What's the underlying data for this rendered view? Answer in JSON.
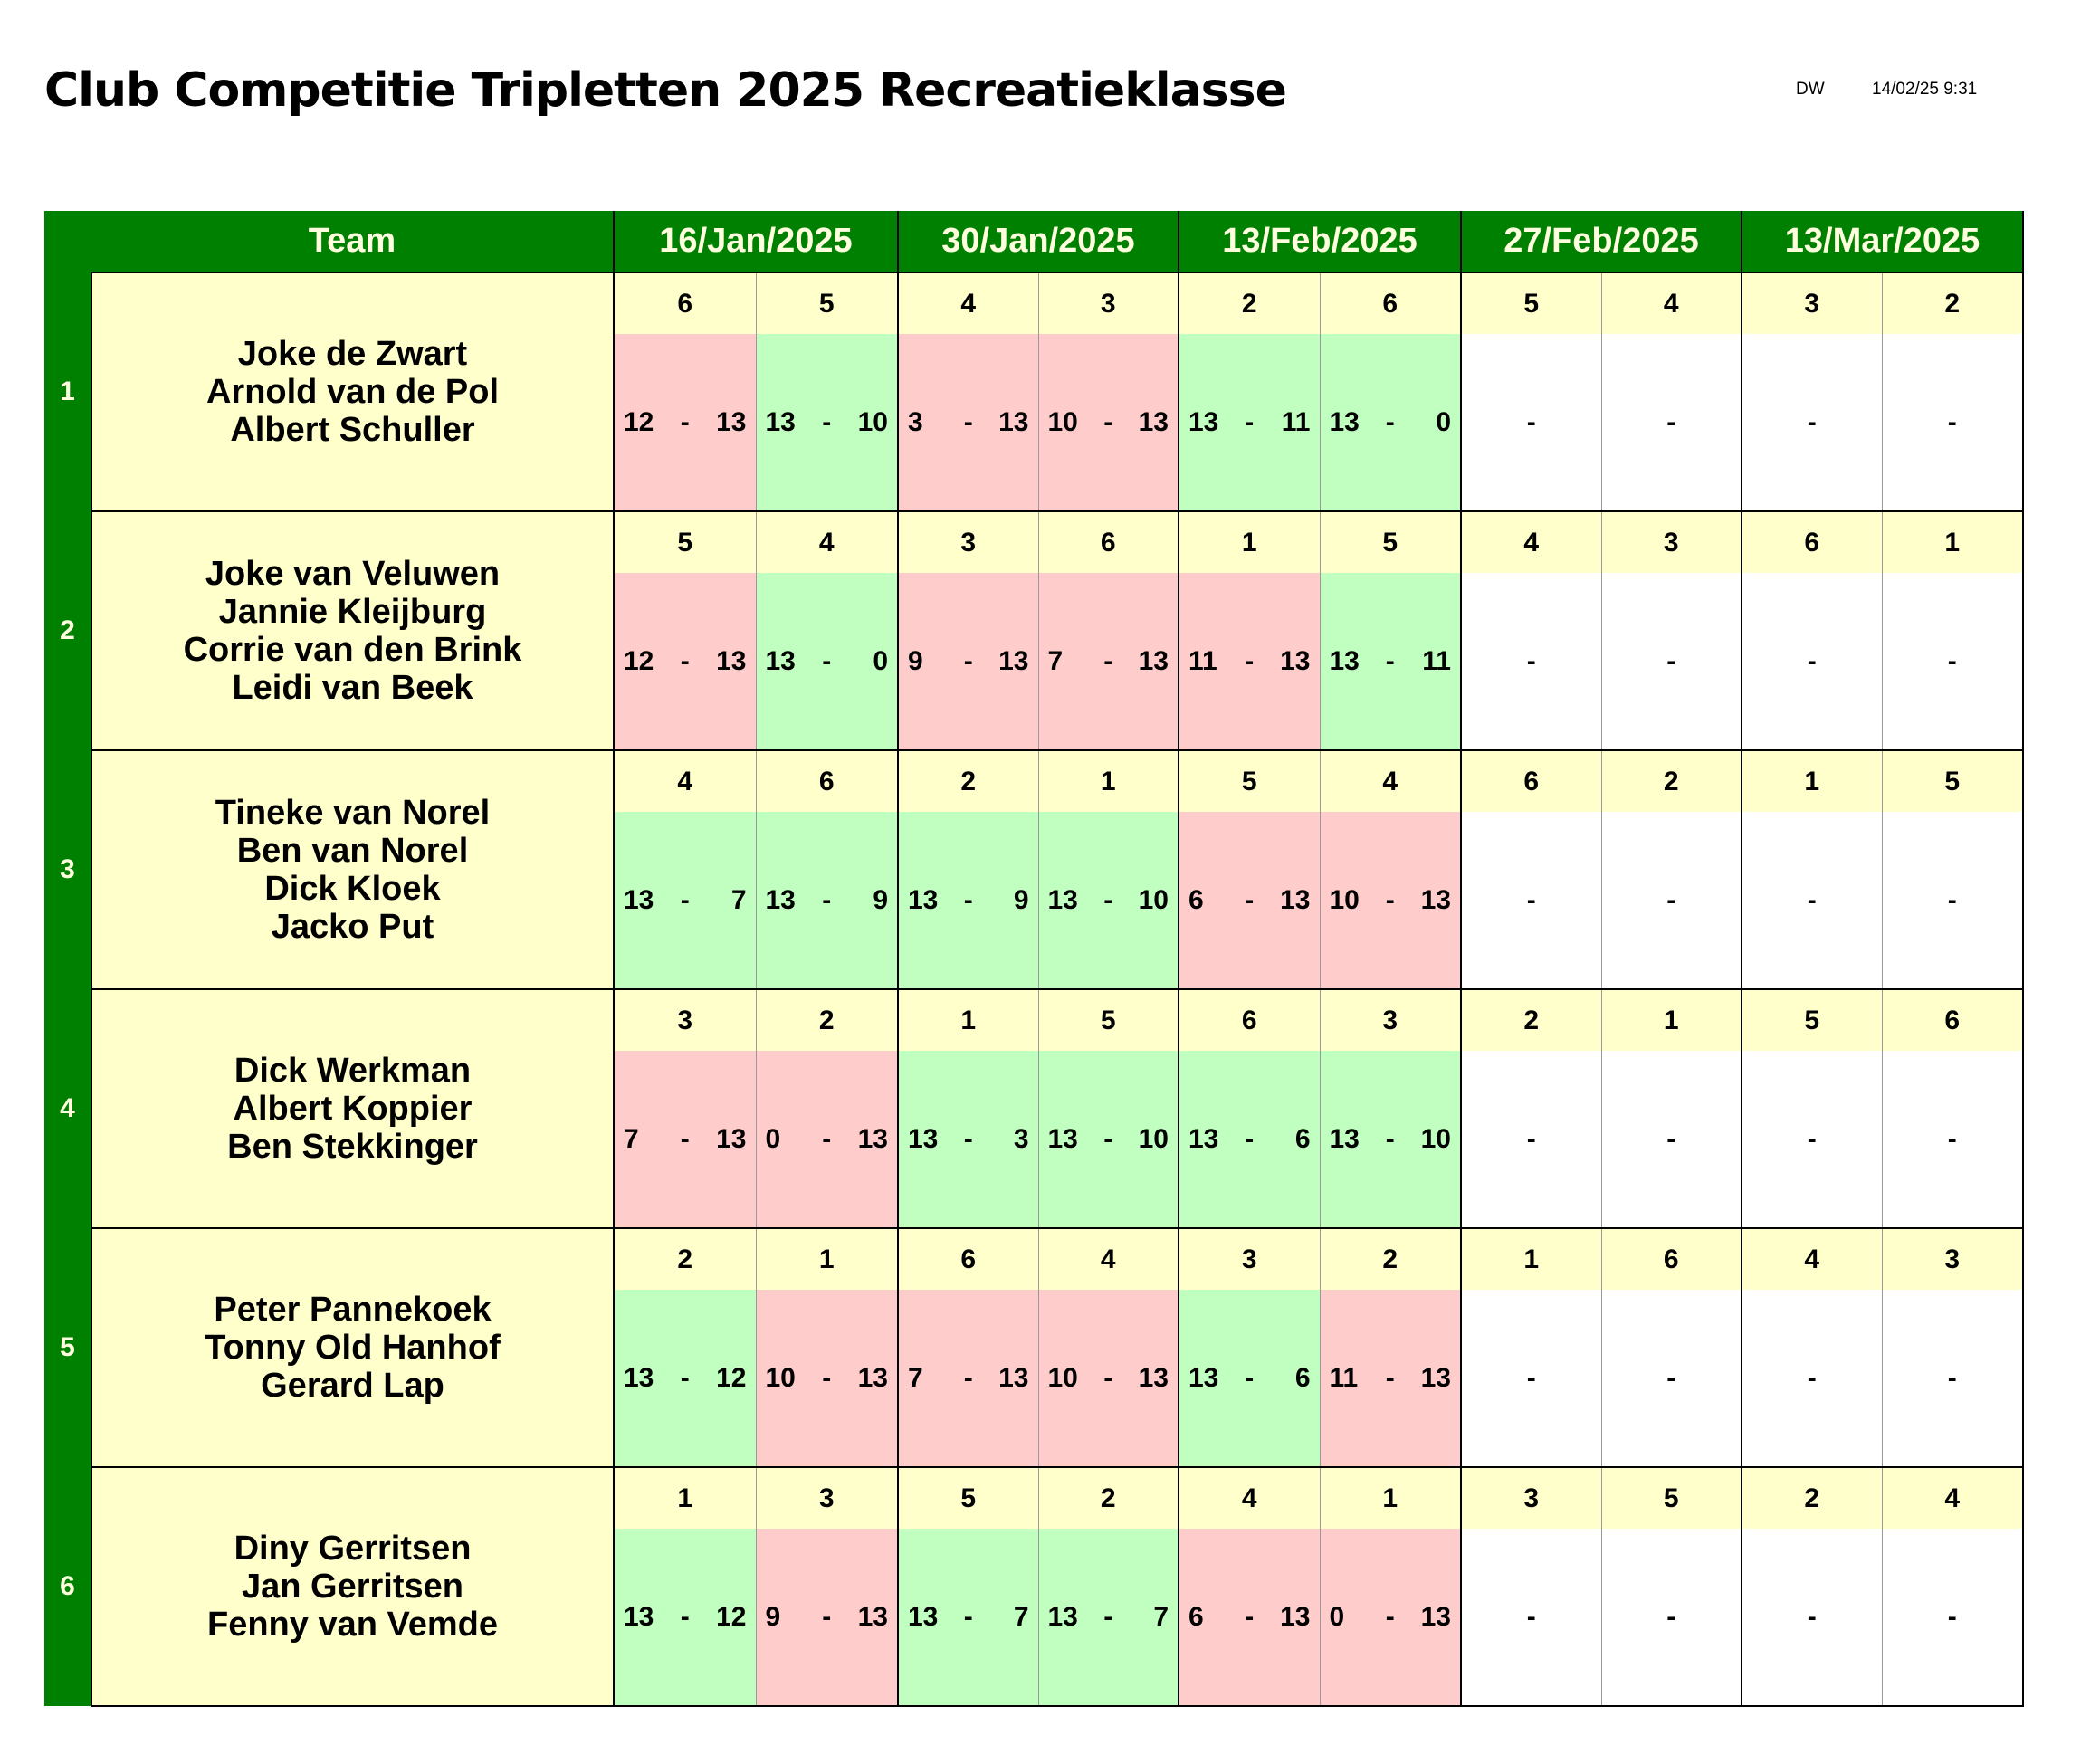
{
  "title": "Club Competitie Tripletten 2025 Recreatieklasse",
  "initials": "DW",
  "timestamp": "14/02/25 9:31",
  "header": {
    "team": "Team",
    "dates": [
      "16/Jan/2025",
      "30/Jan/2025",
      "13/Feb/2025",
      "27/Feb/2025",
      "13/Mar/2025"
    ]
  },
  "colors": {
    "header_green": "#008000",
    "name_yellow": "#ffffcc",
    "win_green": "#c0ffc0",
    "loss_red": "#ffcccc"
  },
  "teams": [
    {
      "number": "1",
      "names": [
        "Joke de Zwart",
        "Arnold van de Pol",
        "Albert Schuller"
      ],
      "opponents": [
        "6",
        "5",
        "4",
        "3",
        "2",
        "6",
        "5",
        "4",
        "3",
        "2"
      ],
      "scores": [
        [
          "12",
          "13"
        ],
        [
          "13",
          "10"
        ],
        [
          "3",
          "13"
        ],
        [
          "10",
          "13"
        ],
        [
          "13",
          "11"
        ],
        [
          "13",
          "0"
        ],
        [
          "",
          ""
        ],
        [
          "",
          ""
        ],
        [
          "",
          ""
        ],
        [
          "",
          ""
        ]
      ]
    },
    {
      "number": "2",
      "names": [
        "Joke van Veluwen",
        "Jannie Kleijburg",
        "Corrie van den Brink",
        "Leidi van Beek"
      ],
      "opponents": [
        "5",
        "4",
        "3",
        "6",
        "1",
        "5",
        "4",
        "3",
        "6",
        "1"
      ],
      "scores": [
        [
          "12",
          "13"
        ],
        [
          "13",
          "0"
        ],
        [
          "9",
          "13"
        ],
        [
          "7",
          "13"
        ],
        [
          "11",
          "13"
        ],
        [
          "13",
          "11"
        ],
        [
          "",
          ""
        ],
        [
          "",
          ""
        ],
        [
          "",
          ""
        ],
        [
          "",
          ""
        ]
      ]
    },
    {
      "number": "3",
      "names": [
        "Tineke van Norel",
        "Ben van Norel",
        "Dick Kloek",
        "Jacko Put"
      ],
      "opponents": [
        "4",
        "6",
        "2",
        "1",
        "5",
        "4",
        "6",
        "2",
        "1",
        "5"
      ],
      "scores": [
        [
          "13",
          "7"
        ],
        [
          "13",
          "9"
        ],
        [
          "13",
          "9"
        ],
        [
          "13",
          "10"
        ],
        [
          "6",
          "13"
        ],
        [
          "10",
          "13"
        ],
        [
          "",
          ""
        ],
        [
          "",
          ""
        ],
        [
          "",
          ""
        ],
        [
          "",
          ""
        ]
      ]
    },
    {
      "number": "4",
      "names": [
        "Dick Werkman",
        "Albert Koppier",
        "Ben Stekkinger"
      ],
      "opponents": [
        "3",
        "2",
        "1",
        "5",
        "6",
        "3",
        "2",
        "1",
        "5",
        "6"
      ],
      "scores": [
        [
          "7",
          "13"
        ],
        [
          "0",
          "13"
        ],
        [
          "13",
          "3"
        ],
        [
          "13",
          "10"
        ],
        [
          "13",
          "6"
        ],
        [
          "13",
          "10"
        ],
        [
          "",
          ""
        ],
        [
          "",
          ""
        ],
        [
          "",
          ""
        ],
        [
          "",
          ""
        ]
      ]
    },
    {
      "number": "5",
      "names": [
        "Peter Pannekoek",
        "Tonny Old Hanhof",
        "Gerard Lap"
      ],
      "opponents": [
        "2",
        "1",
        "6",
        "4",
        "3",
        "2",
        "1",
        "6",
        "4",
        "3"
      ],
      "scores": [
        [
          "13",
          "12"
        ],
        [
          "10",
          "13"
        ],
        [
          "7",
          "13"
        ],
        [
          "10",
          "13"
        ],
        [
          "13",
          "6"
        ],
        [
          "11",
          "13"
        ],
        [
          "",
          ""
        ],
        [
          "",
          ""
        ],
        [
          "",
          ""
        ],
        [
          "",
          ""
        ]
      ]
    },
    {
      "number": "6",
      "names": [
        "Diny Gerritsen",
        "Jan Gerritsen",
        "Fenny van Vemde"
      ],
      "opponents": [
        "1",
        "3",
        "5",
        "2",
        "4",
        "1",
        "3",
        "5",
        "2",
        "4"
      ],
      "scores": [
        [
          "13",
          "12"
        ],
        [
          "9",
          "13"
        ],
        [
          "13",
          "7"
        ],
        [
          "13",
          "7"
        ],
        [
          "6",
          "13"
        ],
        [
          "0",
          "13"
        ],
        [
          "",
          ""
        ],
        [
          "",
          ""
        ],
        [
          "",
          ""
        ],
        [
          "",
          ""
        ]
      ]
    }
  ],
  "score_separator": "-",
  "empty_mark": "-"
}
